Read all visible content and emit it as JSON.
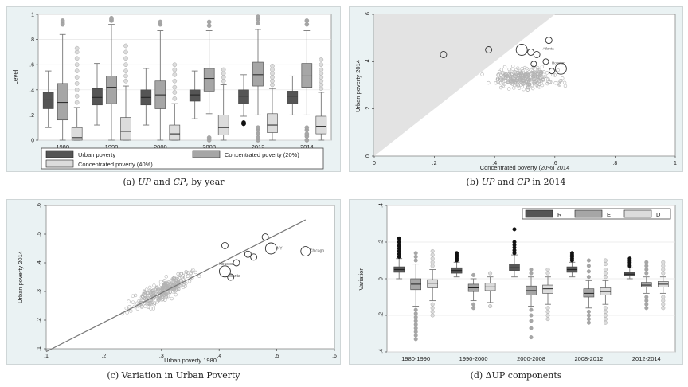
{
  "chart_data": [
    {
      "id": "a",
      "type": "boxplot",
      "caption": "(a) UP and CP, by year",
      "ylabel": "Level",
      "ylim": [
        0,
        1
      ],
      "yticks": [
        0,
        0.2,
        0.4,
        0.6,
        0.8,
        1
      ],
      "ytick_labels": [
        "0",
        ".2",
        ".4",
        ".6",
        ".8",
        "1"
      ],
      "categories": [
        "1980",
        "1990",
        "2000",
        "2008",
        "2012",
        "2014"
      ],
      "legend": [
        "Urban poverty",
        "Concentrated poverty (20%)",
        "Concentrated poverty (40%)"
      ],
      "series": [
        {
          "name": "Urban poverty",
          "color": "#555555",
          "boxes": [
            {
              "lo": 0.1,
              "q1": 0.25,
              "med": 0.32,
              "q3": 0.38,
              "hi": 0.55,
              "out": []
            },
            {
              "lo": 0.12,
              "q1": 0.28,
              "med": 0.34,
              "q3": 0.41,
              "hi": 0.61,
              "out": []
            },
            {
              "lo": 0.12,
              "q1": 0.28,
              "med": 0.34,
              "q3": 0.4,
              "hi": 0.57,
              "out": []
            },
            {
              "lo": 0.17,
              "q1": 0.31,
              "med": 0.36,
              "q3": 0.4,
              "hi": 0.55,
              "out": []
            },
            {
              "lo": 0.19,
              "q1": 0.29,
              "med": 0.35,
              "q3": 0.4,
              "hi": 0.52,
              "out": [
                0.13,
                0.14,
                0.13
              ]
            },
            {
              "lo": 0.2,
              "q1": 0.29,
              "med": 0.35,
              "q3": 0.39,
              "hi": 0.51,
              "out": []
            }
          ]
        },
        {
          "name": "Concentrated poverty (20%)",
          "color": "#a6a6a6",
          "boxes": [
            {
              "lo": 0.0,
              "q1": 0.16,
              "med": 0.3,
              "q3": 0.45,
              "hi": 0.84,
              "out": [
                0.92,
                0.93,
                0.95
              ]
            },
            {
              "lo": 0.0,
              "q1": 0.29,
              "med": 0.42,
              "q3": 0.51,
              "hi": 0.92,
              "out": [
                0.95,
                0.96,
                0.97
              ]
            },
            {
              "lo": 0.0,
              "q1": 0.25,
              "med": 0.36,
              "q3": 0.47,
              "hi": 0.87,
              "out": [
                0.92,
                0.94
              ]
            },
            {
              "lo": 0.21,
              "q1": 0.39,
              "med": 0.49,
              "q3": 0.57,
              "hi": 0.87,
              "out": [
                0.0,
                0.02,
                0.91,
                0.94
              ]
            },
            {
              "lo": 0.2,
              "q1": 0.43,
              "med": 0.52,
              "q3": 0.62,
              "hi": 0.88,
              "out": [
                0.0,
                0.02,
                0.05,
                0.08,
                0.1,
                0.93,
                0.96,
                0.98
              ]
            },
            {
              "lo": 0.2,
              "q1": 0.42,
              "med": 0.51,
              "q3": 0.61,
              "hi": 0.87,
              "out": [
                0.0,
                0.03,
                0.05,
                0.08,
                0.1,
                0.92,
                0.95
              ]
            }
          ]
        },
        {
          "name": "Concentrated poverty (40%)",
          "color": "#dcdcdc",
          "boxes": [
            {
              "lo": 0.0,
              "q1": 0.0,
              "med": 0.02,
              "q3": 0.1,
              "hi": 0.26,
              "out": [
                0.3,
                0.35,
                0.4,
                0.45,
                0.5,
                0.55,
                0.6,
                0.65,
                0.7,
                0.73
              ]
            },
            {
              "lo": 0.0,
              "q1": 0.0,
              "med": 0.07,
              "q3": 0.18,
              "hi": 0.43,
              "out": [
                0.47,
                0.51,
                0.55,
                0.6,
                0.65,
                0.7,
                0.75
              ]
            },
            {
              "lo": 0.0,
              "q1": 0.0,
              "med": 0.05,
              "q3": 0.12,
              "hi": 0.29,
              "out": [
                0.33,
                0.38,
                0.42,
                0.47,
                0.52,
                0.56,
                0.6
              ]
            },
            {
              "lo": 0.0,
              "q1": 0.04,
              "med": 0.1,
              "q3": 0.2,
              "hi": 0.44,
              "out": [
                0.47,
                0.5,
                0.53,
                0.56
              ]
            },
            {
              "lo": 0.0,
              "q1": 0.06,
              "med": 0.12,
              "q3": 0.21,
              "hi": 0.41,
              "out": [
                0.44,
                0.47,
                0.5,
                0.53,
                0.56,
                0.59
              ]
            },
            {
              "lo": 0.0,
              "q1": 0.05,
              "med": 0.11,
              "q3": 0.19,
              "hi": 0.38,
              "out": [
                0.41,
                0.44,
                0.47,
                0.5,
                0.53,
                0.56,
                0.6,
                0.64
              ]
            }
          ]
        }
      ]
    },
    {
      "id": "b",
      "type": "scatter",
      "caption": "(b) UP and CP in 2014",
      "xlabel": "Concentrated poverty (20%) 2014",
      "ylabel": "Urban poverty 2014",
      "xlim": [
        0,
        1
      ],
      "ylim": [
        0,
        0.6
      ],
      "xticks": [
        0,
        0.2,
        0.4,
        0.6,
        0.8,
        1
      ],
      "xtick_labels": [
        "0",
        ".2",
        ".4",
        ".6",
        ".8",
        "1"
      ],
      "yticks": [
        0,
        0.2,
        0.4,
        0.6
      ],
      "ytick_labels": [
        "0",
        ".2",
        ".4",
        ".6"
      ],
      "shaded_region": [
        [
          0,
          0
        ],
        [
          0,
          0.6
        ],
        [
          0.6,
          0.6
        ]
      ],
      "point_labels": [
        "Atlanta",
        "Houston"
      ],
      "highlighted": [
        {
          "x": 0.23,
          "y": 0.43,
          "r": 4
        },
        {
          "x": 0.38,
          "y": 0.45,
          "r": 4
        },
        {
          "x": 0.49,
          "y": 0.45,
          "r": 7
        },
        {
          "x": 0.52,
          "y": 0.44,
          "r": 4
        },
        {
          "x": 0.54,
          "y": 0.43,
          "r": 4
        },
        {
          "x": 0.58,
          "y": 0.49,
          "r": 4
        },
        {
          "x": 0.57,
          "y": 0.4,
          "r": 3.5
        },
        {
          "x": 0.59,
          "y": 0.36,
          "r": 3.5
        },
        {
          "x": 0.62,
          "y": 0.37,
          "r": 7
        },
        {
          "x": 0.53,
          "y": 0.39,
          "r": 3.5
        }
      ]
    },
    {
      "id": "c",
      "type": "scatter",
      "caption": "(c) Variation in Urban Poverty",
      "xlabel": "Urban poverty 1980",
      "ylabel": "Urban poverty 2014",
      "xlim": [
        0.1,
        0.6
      ],
      "ylim": [
        0.1,
        0.6
      ],
      "xticks": [
        0.1,
        0.2,
        0.3,
        0.4,
        0.5,
        0.6
      ],
      "xtick_labels": [
        ".1",
        ".2",
        ".3",
        ".4",
        ".5",
        ".6"
      ],
      "yticks": [
        0.1,
        0.2,
        0.3,
        0.4,
        0.5,
        0.6
      ],
      "ytick_labels": [
        ".1",
        ".2",
        ".3",
        ".4",
        ".5",
        ".6"
      ],
      "fit_line": [
        [
          0.1,
          0.09
        ],
        [
          0.55,
          0.55
        ]
      ],
      "point_labels": [
        "Chicago",
        "Houston",
        "Atlanta",
        "NY"
      ],
      "highlighted": [
        {
          "x": 0.55,
          "y": 0.44,
          "r": 6,
          "label": "Chicago"
        },
        {
          "x": 0.49,
          "y": 0.45,
          "r": 7,
          "label": "NY"
        },
        {
          "x": 0.48,
          "y": 0.49,
          "r": 4
        },
        {
          "x": 0.45,
          "y": 0.43,
          "r": 4
        },
        {
          "x": 0.41,
          "y": 0.46,
          "r": 4
        },
        {
          "x": 0.41,
          "y": 0.37,
          "r": 7
        },
        {
          "x": 0.43,
          "y": 0.4,
          "r": 4,
          "label": "Houston"
        },
        {
          "x": 0.42,
          "y": 0.35,
          "r": 4,
          "label": "Atlanta"
        },
        {
          "x": 0.46,
          "y": 0.42,
          "r": 4
        }
      ]
    },
    {
      "id": "d",
      "type": "boxplot",
      "caption": "(d) ΔUP components",
      "ylabel": "Variation",
      "ylim": [
        -0.4,
        0.4
      ],
      "yticks": [
        -0.4,
        -0.2,
        0,
        0.2,
        0.4
      ],
      "ytick_labels": [
        "-.4",
        "-.2",
        "0",
        ".2",
        ".4"
      ],
      "categories": [
        "1980-1990",
        "1990-2000",
        "2000-2008",
        "2008-2012",
        "2012-2014"
      ],
      "legend": [
        "R",
        "E",
        "D"
      ],
      "series": [
        {
          "name": "R",
          "color": "#555555",
          "boxes": [
            {
              "lo": 0.0,
              "q1": 0.035,
              "med": 0.05,
              "q3": 0.065,
              "hi": 0.11,
              "out": [
                0.12,
                0.135,
                0.15,
                0.165,
                0.18,
                0.2,
                0.22
              ]
            },
            {
              "lo": 0.01,
              "q1": 0.03,
              "med": 0.045,
              "q3": 0.06,
              "hi": 0.09,
              "out": [
                0.1,
                0.11,
                0.12,
                0.13,
                0.14
              ]
            },
            {
              "lo": 0.01,
              "q1": 0.045,
              "med": 0.06,
              "q3": 0.08,
              "hi": 0.13,
              "out": [
                0.14,
                0.155,
                0.17,
                0.185,
                0.2,
                0.27
              ]
            },
            {
              "lo": 0.01,
              "q1": 0.035,
              "med": 0.05,
              "q3": 0.065,
              "hi": 0.09,
              "out": [
                0.1,
                0.11,
                0.12,
                0.13,
                0.14
              ]
            },
            {
              "lo": 0.0,
              "q1": 0.018,
              "med": 0.025,
              "q3": 0.035,
              "hi": 0.06,
              "out": [
                0.07,
                0.08,
                0.09,
                0.1,
                0.11
              ]
            }
          ]
        },
        {
          "name": "E",
          "color": "#a6a6a6",
          "boxes": [
            {
              "lo": -0.15,
              "q1": -0.06,
              "med": -0.03,
              "q3": 0.0,
              "hi": 0.08,
              "out": [
                -0.17,
                -0.19,
                -0.21,
                -0.23,
                -0.25,
                -0.27,
                -0.29,
                -0.31,
                -0.33,
                0.1,
                0.12,
                0.14
              ]
            },
            {
              "lo": -0.12,
              "q1": -0.07,
              "med": -0.05,
              "q3": -0.03,
              "hi": 0.0,
              "out": [
                -0.14,
                -0.16,
                0.02
              ]
            },
            {
              "lo": -0.15,
              "q1": -0.09,
              "med": -0.065,
              "q3": -0.04,
              "hi": 0.01,
              "out": [
                -0.17,
                -0.2,
                -0.23,
                -0.27,
                -0.32,
                0.03,
                0.05
              ]
            },
            {
              "lo": -0.16,
              "q1": -0.1,
              "med": -0.08,
              "q3": -0.055,
              "hi": -0.01,
              "out": [
                -0.18,
                -0.2,
                -0.22,
                -0.24,
                0.01,
                0.04,
                0.07,
                0.1
              ]
            },
            {
              "lo": -0.08,
              "q1": -0.045,
              "med": -0.035,
              "q3": -0.02,
              "hi": 0.01,
              "out": [
                -0.1,
                -0.12,
                -0.14,
                -0.16,
                0.03,
                0.05,
                0.07,
                0.09
              ]
            }
          ]
        },
        {
          "name": "D",
          "color": "#dcdcdc",
          "boxes": [
            {
              "lo": -0.12,
              "q1": -0.05,
              "med": -0.025,
              "q3": -0.005,
              "hi": 0.05,
              "out": [
                -0.14,
                -0.16,
                -0.18,
                -0.2,
                0.07,
                0.09,
                0.11,
                0.13,
                0.15
              ]
            },
            {
              "lo": -0.13,
              "q1": -0.065,
              "med": -0.045,
              "q3": -0.025,
              "hi": 0.01,
              "out": [
                -0.15,
                0.03
              ]
            },
            {
              "lo": -0.14,
              "q1": -0.08,
              "med": -0.055,
              "q3": -0.035,
              "hi": 0.01,
              "out": [
                -0.16,
                -0.18,
                -0.2,
                -0.22,
                0.03,
                0.05
              ]
            },
            {
              "lo": -0.14,
              "q1": -0.09,
              "med": -0.07,
              "q3": -0.05,
              "hi": -0.01,
              "out": [
                -0.16,
                -0.18,
                -0.2,
                -0.22,
                -0.24,
                0.01,
                0.03,
                0.05,
                0.08,
                0.1
              ]
            },
            {
              "lo": -0.08,
              "q1": -0.045,
              "med": -0.03,
              "q3": -0.015,
              "hi": 0.01,
              "out": [
                -0.1,
                -0.12,
                -0.14,
                -0.16,
                0.03,
                0.05,
                0.07,
                0.09
              ]
            }
          ]
        }
      ]
    }
  ]
}
